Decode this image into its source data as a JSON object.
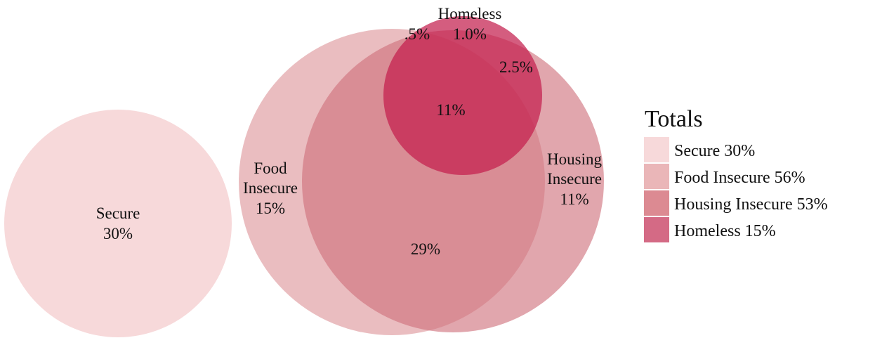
{
  "colors": {
    "secure": "#f7d9da",
    "food": "#eab6b8",
    "housing": "#dc8a92",
    "homeless": "#c9305a",
    "legend_homeless": "#d46a85"
  },
  "sets": [
    {
      "key": "secure",
      "legend": "Secure 30%"
    },
    {
      "key": "food",
      "legend": "Food Insecure 56%"
    },
    {
      "key": "housing",
      "legend": "Housing Insecure 53%"
    },
    {
      "key": "homeless",
      "legend": "Homeless 15%"
    }
  ],
  "labels": {
    "secure": [
      "Secure",
      "30%"
    ],
    "food": [
      "Food",
      "Insecure",
      "15%"
    ],
    "housing": [
      "Housing",
      "Insecure",
      "11%"
    ],
    "homeless": [
      "Homeless",
      "1.0%"
    ],
    "food_homeless": ".5%",
    "housing_homeless": "2.5%",
    "all_three": "11%",
    "food_housing": "29%"
  },
  "legend": {
    "title": "Totals",
    "items": [
      "Secure 30%",
      "Food Insecure 56%",
      "Housing Insecure 53%",
      "Homeless 15%"
    ]
  }
}
